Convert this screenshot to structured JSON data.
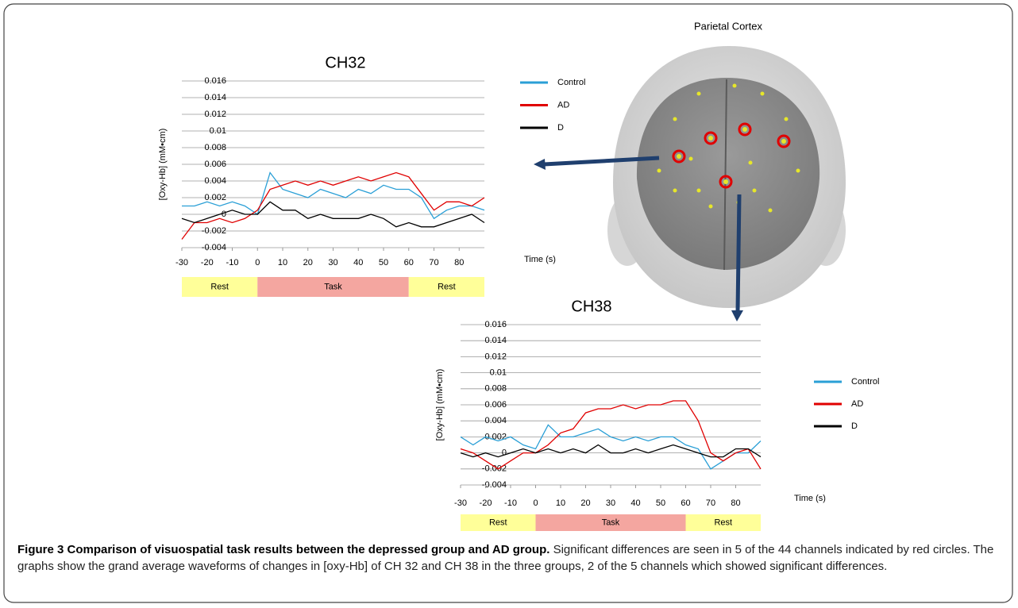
{
  "brain_label": "Parietal   Cortex",
  "caption": {
    "title": "Figure 3 Comparison of visuospatial task results between the depressed group and AD group.",
    "text": "Significant differences are seen in 5 of the 44 channels indicated by red circles. The graphs show the grand average waveforms of changes in [oxy-Hb] of CH 32 and CH 38 in the three groups, 2 of the 5 channels which showed significant differences."
  },
  "chart_data": [
    {
      "type": "line",
      "title": "CH32",
      "y_label": "[Oxy-Hb] (mM•cm)",
      "x_label": "Time (s)",
      "x": [
        -30,
        -25,
        -20,
        -15,
        -10,
        -5,
        0,
        5,
        10,
        15,
        20,
        25,
        30,
        35,
        40,
        45,
        50,
        55,
        60,
        65,
        70,
        75,
        80,
        85,
        90
      ],
      "xlim": [
        -30,
        90
      ],
      "xticks": [
        -30,
        -20,
        -10,
        0,
        10,
        20,
        30,
        40,
        50,
        60,
        70,
        80
      ],
      "ylim": [
        -0.004,
        0.016
      ],
      "yticks": [
        0.016,
        0.014,
        0.012,
        0.01,
        0.008,
        0.006,
        0.004,
        0.002,
        0,
        -0.002,
        -0.004
      ],
      "grid": true,
      "series": [
        {
          "name": "Control",
          "color": "#2a9fd6",
          "values": [
            0.001,
            0.001,
            0.0015,
            0.001,
            0.0015,
            0.001,
            0,
            0.005,
            0.003,
            0.0025,
            0.002,
            0.003,
            0.0025,
            0.002,
            0.003,
            0.0025,
            0.0035,
            0.003,
            0.003,
            0.002,
            -0.0005,
            0.0005,
            0.001,
            0.001,
            0.0005
          ]
        },
        {
          "name": "AD",
          "color": "#e00000",
          "values": [
            -0.003,
            -0.001,
            -0.001,
            -0.0005,
            -0.001,
            -0.0005,
            0.0005,
            0.003,
            0.0035,
            0.004,
            0.0035,
            0.004,
            0.0035,
            0.004,
            0.0045,
            0.004,
            0.0045,
            0.005,
            0.0045,
            0.0025,
            0.0005,
            0.0015,
            0.0015,
            0.001,
            0.002
          ]
        },
        {
          "name": "D",
          "color": "#000000",
          "values": [
            -0.0005,
            -0.001,
            -0.0005,
            0,
            0.0005,
            0,
            0,
            0.0015,
            0.0005,
            0.0005,
            -0.0005,
            0,
            -0.0005,
            -0.0005,
            -0.0005,
            0,
            -0.0005,
            -0.0015,
            -0.001,
            -0.0015,
            -0.0015,
            -0.001,
            -0.0005,
            0,
            -0.001
          ]
        }
      ],
      "phases": [
        {
          "label": "Rest",
          "start": -30,
          "end": 0,
          "color": "#ffff99"
        },
        {
          "label": "Task",
          "start": 0,
          "end": 60,
          "color": "#f4a6a0"
        },
        {
          "label": "Rest",
          "start": 60,
          "end": 90,
          "color": "#ffff99"
        }
      ]
    },
    {
      "type": "line",
      "title": "CH38",
      "y_label": "[Oxy-Hb] (mM•cm)",
      "x_label": "Time (s)",
      "x": [
        -30,
        -25,
        -20,
        -15,
        -10,
        -5,
        0,
        5,
        10,
        15,
        20,
        25,
        30,
        35,
        40,
        45,
        50,
        55,
        60,
        65,
        70,
        75,
        80,
        85,
        90
      ],
      "xlim": [
        -30,
        90
      ],
      "xticks": [
        -30,
        -20,
        -10,
        0,
        10,
        20,
        30,
        40,
        50,
        60,
        70,
        80
      ],
      "ylim": [
        -0.004,
        0.016
      ],
      "yticks": [
        0.016,
        0.014,
        0.012,
        0.01,
        0.008,
        0.006,
        0.004,
        0.002,
        0,
        -0.002,
        -0.004
      ],
      "grid": true,
      "series": [
        {
          "name": "Control",
          "color": "#2a9fd6",
          "values": [
            0.002,
            0.001,
            0.002,
            0.0015,
            0.002,
            0.001,
            0.0005,
            0.0035,
            0.002,
            0.002,
            0.0025,
            0.003,
            0.002,
            0.0015,
            0.002,
            0.0015,
            0.002,
            0.002,
            0.001,
            0.0005,
            -0.002,
            -0.001,
            0,
            0,
            0.0015
          ]
        },
        {
          "name": "AD",
          "color": "#e00000",
          "values": [
            0.0005,
            0,
            -0.001,
            -0.002,
            -0.001,
            0,
            0,
            0.001,
            0.0025,
            0.003,
            0.005,
            0.0055,
            0.0055,
            0.006,
            0.0055,
            0.006,
            0.006,
            0.0065,
            0.0065,
            0.004,
            0,
            -0.001,
            0,
            0.0005,
            -0.002
          ]
        },
        {
          "name": "D",
          "color": "#000000",
          "values": [
            0,
            -0.0005,
            0,
            -0.0005,
            0,
            0.0005,
            0,
            0.0005,
            0,
            0.0005,
            0,
            0.001,
            0,
            0,
            0.0005,
            0,
            0.0005,
            0.001,
            0.0005,
            0,
            -0.0005,
            -0.0005,
            0.0005,
            0.0005,
            -0.0005
          ]
        }
      ],
      "phases": [
        {
          "label": "Rest",
          "start": -30,
          "end": 0,
          "color": "#ffff99"
        },
        {
          "label": "Task",
          "start": 0,
          "end": 60,
          "color": "#f4a6a0"
        },
        {
          "label": "Rest",
          "start": 60,
          "end": 90,
          "color": "#ffff99"
        }
      ]
    }
  ]
}
